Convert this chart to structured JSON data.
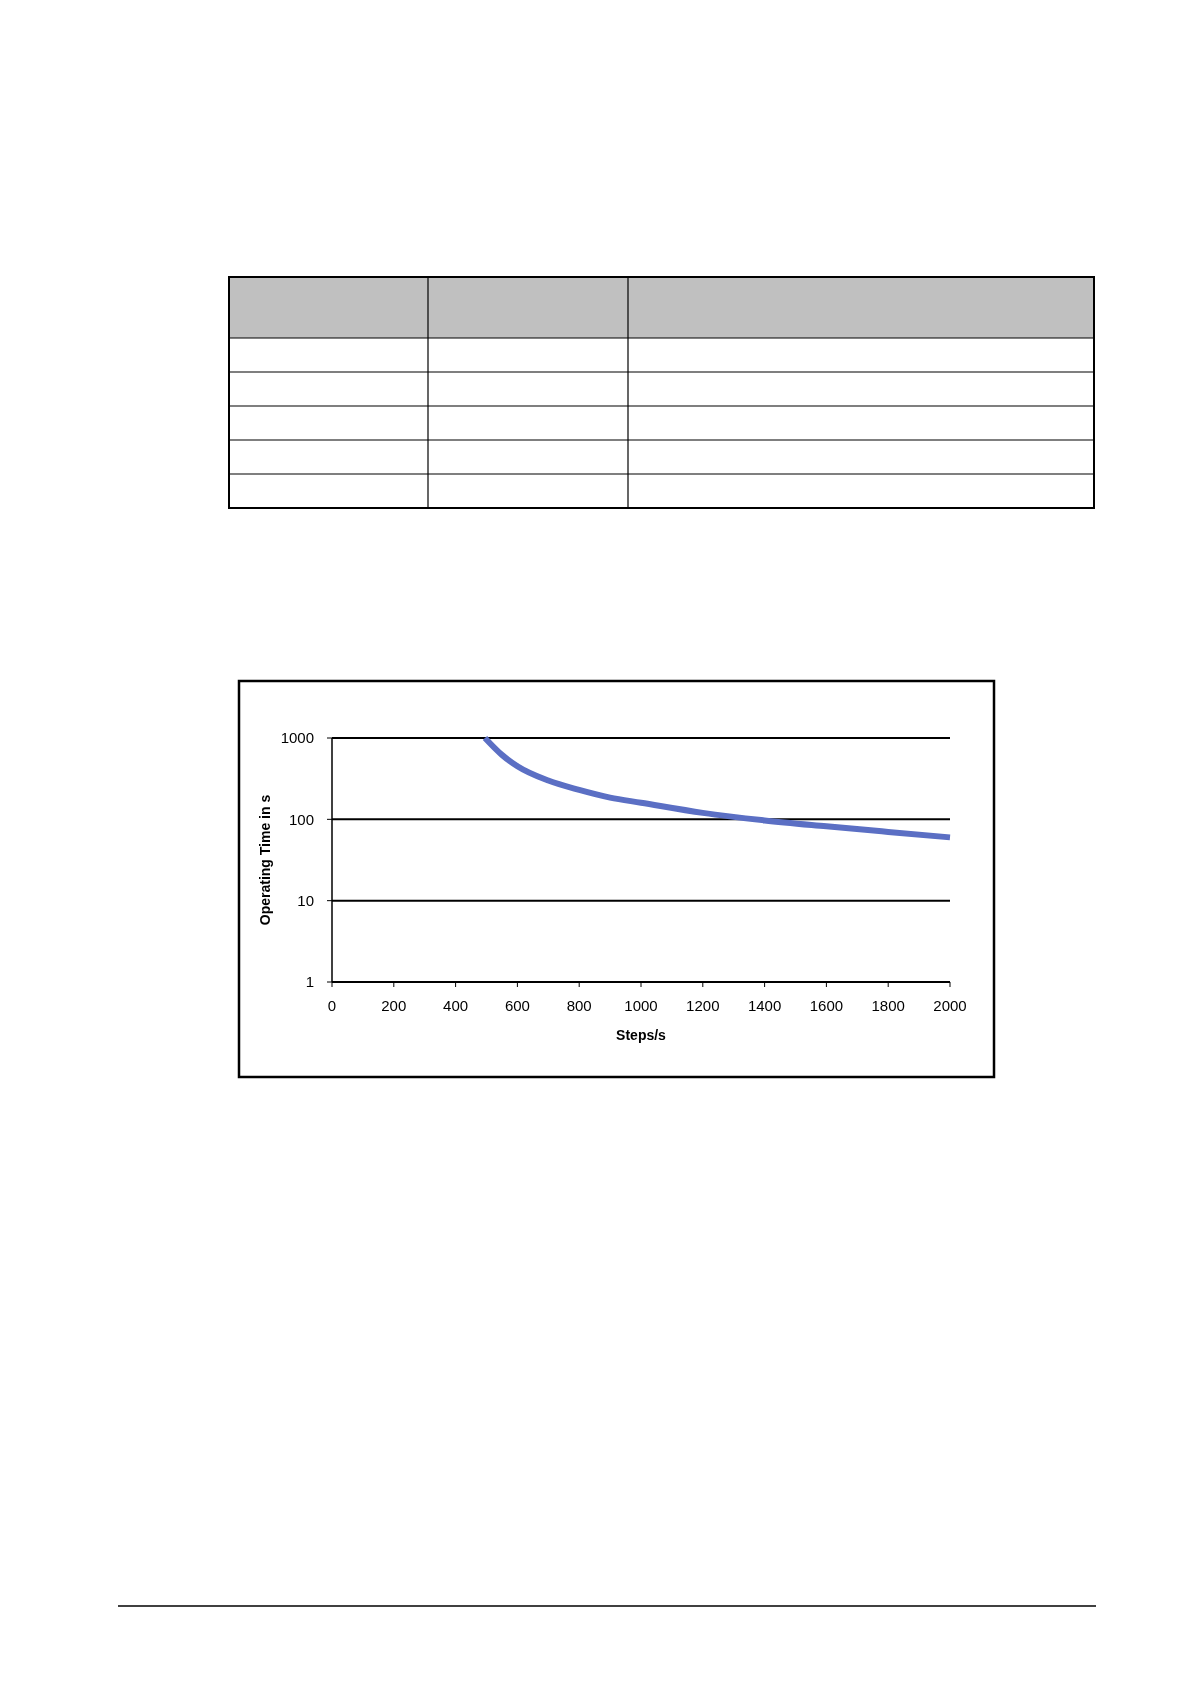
{
  "chart_data": {
    "type": "line",
    "xlabel": "Steps/s",
    "ylabel": "Operating Time in s",
    "x": [
      495,
      550,
      600,
      700,
      800,
      900,
      1000,
      1200,
      1400,
      1600,
      1800,
      2000
    ],
    "series": [
      {
        "color": "#5b6fc4",
        "values": [
          1000,
          620,
          450,
          300,
          230,
          185,
          160,
          120,
          97,
          82,
          70,
          60
        ]
      }
    ],
    "xlim": [
      0,
      2000
    ],
    "xticks": [
      0,
      200,
      400,
      600,
      800,
      1000,
      1200,
      1400,
      1600,
      1800,
      2000
    ],
    "ylim": [
      1,
      1000
    ],
    "yticks": [
      1,
      10,
      100,
      1000
    ],
    "log": "y",
    "grid": "y",
    "marker": "none",
    "line_style": "solid"
  }
}
